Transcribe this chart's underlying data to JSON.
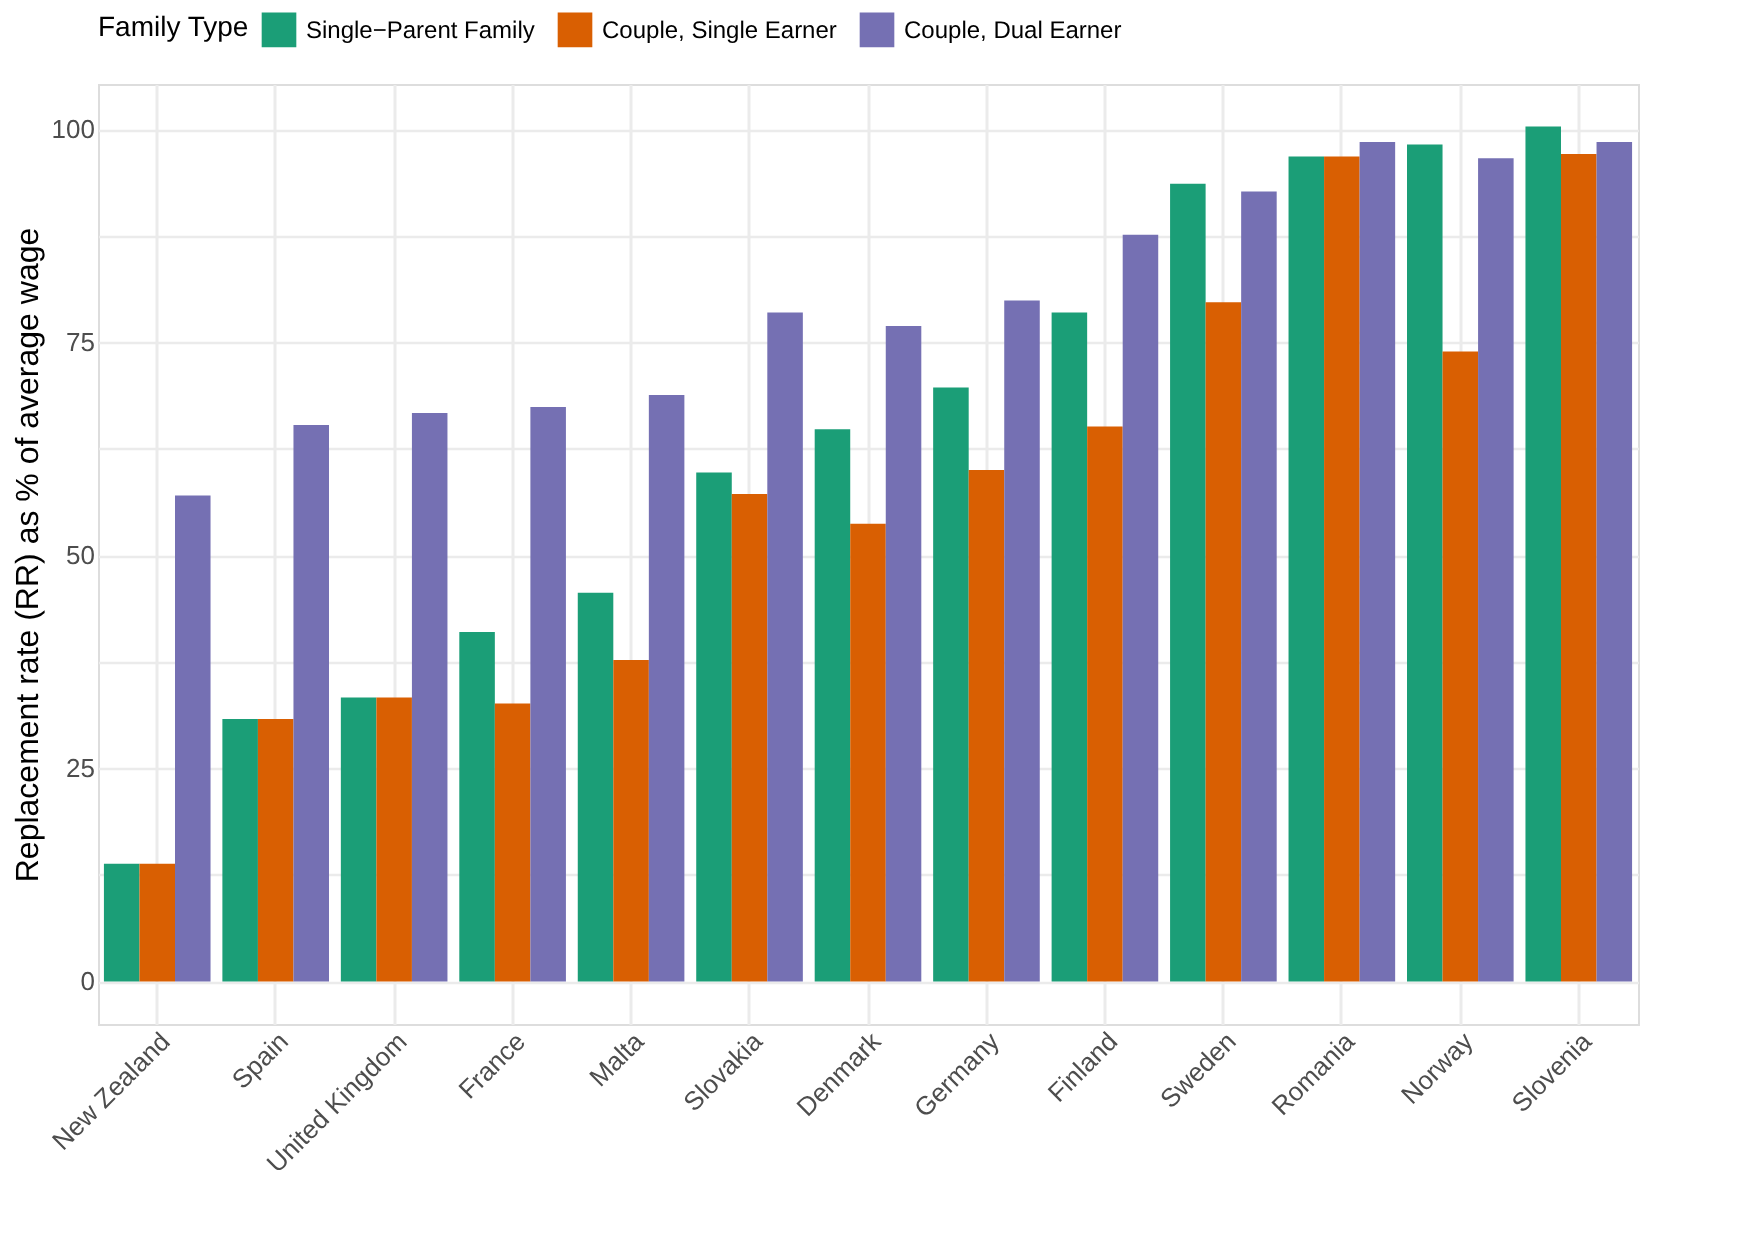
{
  "chart_data": {
    "type": "bar",
    "ylabel": "Replacement rate (RR) as % of average wage",
    "legend_title": "Family Type",
    "legend": "top",
    "grid": true,
    "categories": [
      "New Zealand",
      "Spain",
      "United Kingdom",
      "France",
      "Malta",
      "Slovakia",
      "Denmark",
      "Germany",
      "Finland",
      "Sweden",
      "Romania",
      "Norway",
      "Slovenia"
    ],
    "series": [
      {
        "name": "Single−Parent Family",
        "color": "#1b9e77",
        "values": [
          13.8,
          30.8,
          33.3,
          41.0,
          45.6,
          59.7,
          64.8,
          69.7,
          78.5,
          93.6,
          96.8,
          98.2,
          100.3
        ]
      },
      {
        "name": "Couple, Single Earner",
        "color": "#d95f02",
        "values": [
          13.8,
          30.8,
          33.3,
          32.6,
          37.7,
          57.2,
          53.7,
          60.0,
          65.1,
          79.7,
          96.8,
          73.9,
          97.1
        ]
      },
      {
        "name": "Couple, Dual Earner",
        "color": "#7570b3",
        "values": [
          57.0,
          65.3,
          66.7,
          67.4,
          68.8,
          78.5,
          76.9,
          79.9,
          87.6,
          92.7,
          98.5,
          96.6,
          98.5
        ]
      }
    ],
    "ylim": [
      -5,
      105.3
    ],
    "yticks": [
      0,
      {
        "value": 12.5,
        "label": null
      },
      25,
      {
        "value": 37.5,
        "label": null
      },
      50,
      {
        "value": 62.5,
        "label": null
      },
      75,
      {
        "value": 87.5,
        "label": null
      },
      100
    ]
  }
}
